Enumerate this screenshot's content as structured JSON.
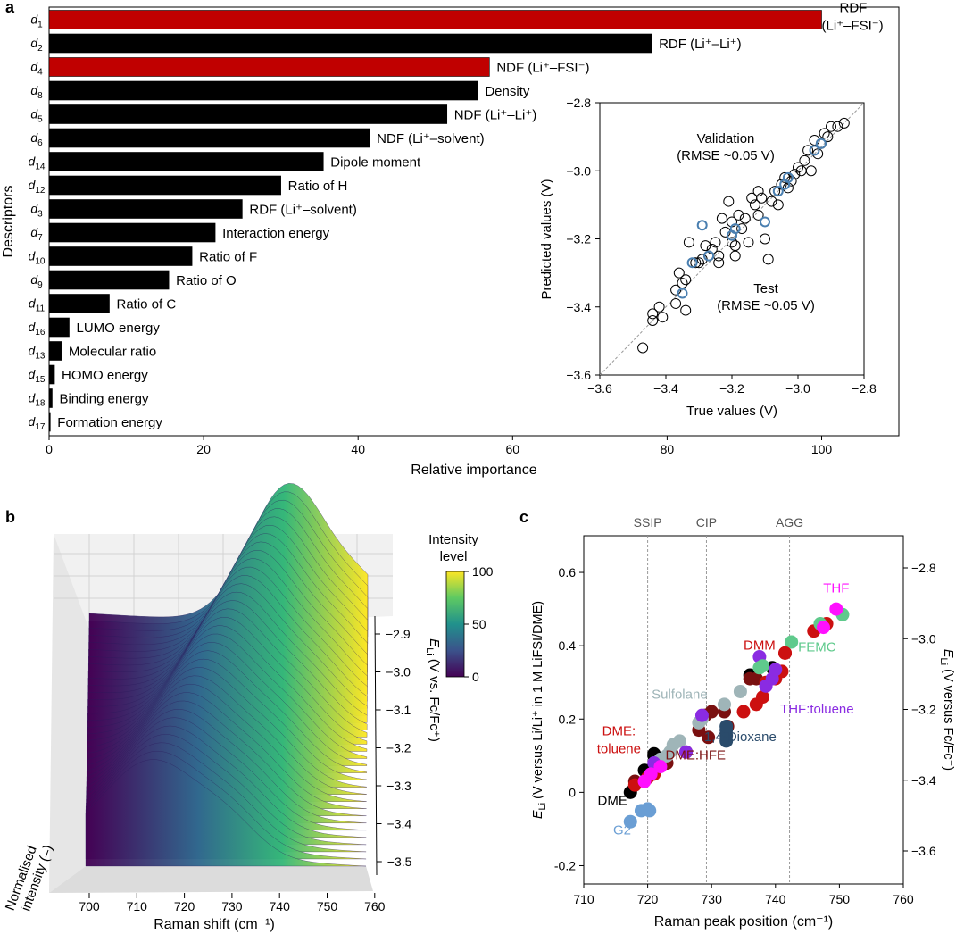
{
  "panels": {
    "a": "a",
    "b": "b",
    "c": "c"
  },
  "chart_data": [
    {
      "panel": "a",
      "type": "bar",
      "orientation": "horizontal",
      "ylabel": "Descriptors",
      "xlabel": "Relative importance",
      "xlim": [
        0,
        110
      ],
      "xticks": [
        0,
        20,
        40,
        60,
        80,
        100
      ],
      "highlight_color": "#c00000",
      "bar_color": "#000000",
      "bars": [
        {
          "id": "1",
          "name": "RDF",
          "name2": "(Li⁺–FSI⁻)",
          "value": 100,
          "highlight": true
        },
        {
          "id": "2",
          "name": "RDF (Li⁺–Li⁺)",
          "value": 78,
          "highlight": false
        },
        {
          "id": "4",
          "name": "NDF (Li⁺–FSI⁻)",
          "value": 57,
          "highlight": true
        },
        {
          "id": "8",
          "name": "Density",
          "value": 55.5,
          "highlight": false
        },
        {
          "id": "5",
          "name": "NDF (Li⁺–Li⁺)",
          "value": 51.5,
          "highlight": false
        },
        {
          "id": "6",
          "name": "NDF (Li⁺–solvent)",
          "value": 41.5,
          "highlight": false
        },
        {
          "id": "14",
          "name": "Dipole moment",
          "value": 35.5,
          "highlight": false
        },
        {
          "id": "12",
          "name": "Ratio of H",
          "value": 30,
          "highlight": false
        },
        {
          "id": "3",
          "name": "RDF (Li⁺–solvent)",
          "value": 25,
          "highlight": false
        },
        {
          "id": "7",
          "name": "Interaction energy",
          "value": 21.5,
          "highlight": false
        },
        {
          "id": "10",
          "name": "Ratio of F",
          "value": 18.5,
          "highlight": false
        },
        {
          "id": "9",
          "name": "Ratio of O",
          "value": 15.5,
          "highlight": false
        },
        {
          "id": "11",
          "name": "Ratio of C",
          "value": 7.8,
          "highlight": false
        },
        {
          "id": "16",
          "name": "LUMO energy",
          "value": 2.6,
          "highlight": false
        },
        {
          "id": "13",
          "name": "Molecular ratio",
          "value": 1.6,
          "highlight": false
        },
        {
          "id": "15",
          "name": "HOMO energy",
          "value": 0.7,
          "highlight": false
        },
        {
          "id": "18",
          "name": "Binding energy",
          "value": 0.4,
          "highlight": false
        },
        {
          "id": "17",
          "name": "Formation energy",
          "value": 0.15,
          "highlight": false
        }
      ],
      "inset": {
        "type": "scatter",
        "xlabel": "True values (V)",
        "ylabel": "Predicted values (V)",
        "xlim": [
          -3.6,
          -2.8
        ],
        "ylim": [
          -3.6,
          -2.8
        ],
        "xticks": [
          -3.6,
          -3.4,
          -3.2,
          -3.0,
          -2.8
        ],
        "yticks": [
          -3.6,
          -3.4,
          -3.2,
          -3.0,
          -2.8
        ],
        "xtick_labels": [
          "−3.6",
          "−3.4",
          "−3.2",
          "−3.0",
          "−2.8"
        ],
        "ytick_labels": [
          "−3.6",
          "−3.4",
          "−3.2",
          "−3.0",
          "−2.8"
        ],
        "validation_text": [
          "Validation",
          "(RMSE ~0.05 V)"
        ],
        "test_text": [
          "Test",
          "(RMSE ~0.05 V)"
        ],
        "validation_color": "#000000",
        "test_color": "#4a7fb0",
        "validation_points": [
          [
            -3.47,
            -3.52
          ],
          [
            -3.44,
            -3.44
          ],
          [
            -3.44,
            -3.42
          ],
          [
            -3.41,
            -3.43
          ],
          [
            -3.42,
            -3.4
          ],
          [
            -3.37,
            -3.39
          ],
          [
            -3.37,
            -3.35
          ],
          [
            -3.36,
            -3.3
          ],
          [
            -3.35,
            -3.33
          ],
          [
            -3.34,
            -3.32
          ],
          [
            -3.34,
            -3.41
          ],
          [
            -3.33,
            -3.21
          ],
          [
            -3.31,
            -3.27
          ],
          [
            -3.3,
            -3.27
          ],
          [
            -3.29,
            -3.26
          ],
          [
            -3.28,
            -3.22
          ],
          [
            -3.27,
            -3.25
          ],
          [
            -3.26,
            -3.23
          ],
          [
            -3.25,
            -3.21
          ],
          [
            -3.24,
            -3.27
          ],
          [
            -3.24,
            -3.25
          ],
          [
            -3.23,
            -3.14
          ],
          [
            -3.22,
            -3.18
          ],
          [
            -3.21,
            -3.09
          ],
          [
            -3.2,
            -3.15
          ],
          [
            -3.19,
            -3.22
          ],
          [
            -3.18,
            -3.13
          ],
          [
            -3.17,
            -3.17
          ],
          [
            -3.16,
            -3.14
          ],
          [
            -3.15,
            -3.21
          ],
          [
            -3.14,
            -3.08
          ],
          [
            -3.13,
            -3.1
          ],
          [
            -3.12,
            -3.06
          ],
          [
            -3.12,
            -3.13
          ],
          [
            -3.11,
            -3.08
          ],
          [
            -3.1,
            -3.2
          ],
          [
            -3.09,
            -3.26
          ],
          [
            -3.08,
            -3.09
          ],
          [
            -3.07,
            -3.06
          ],
          [
            -3.06,
            -3.1
          ],
          [
            -3.05,
            -3.04
          ],
          [
            -3.04,
            -3.02
          ],
          [
            -3.03,
            -3.05
          ],
          [
            -3.02,
            -3.03
          ],
          [
            -3.01,
            -3.01
          ],
          [
            -3.0,
            -2.99
          ],
          [
            -2.99,
            -3.0
          ],
          [
            -2.98,
            -2.97
          ],
          [
            -2.97,
            -2.94
          ],
          [
            -2.96,
            -3.0
          ],
          [
            -2.95,
            -2.91
          ],
          [
            -2.94,
            -2.95
          ],
          [
            -2.93,
            -2.92
          ],
          [
            -2.92,
            -2.89
          ],
          [
            -2.91,
            -2.9
          ],
          [
            -2.9,
            -2.87
          ],
          [
            -2.88,
            -2.87
          ],
          [
            -2.86,
            -2.86
          ],
          [
            -3.19,
            -3.25
          ],
          [
            -3.2,
            -3.21
          ]
        ],
        "test_points": [
          [
            -3.35,
            -3.36
          ],
          [
            -3.32,
            -3.27
          ],
          [
            -3.29,
            -3.16
          ],
          [
            -3.27,
            -3.25
          ],
          [
            -3.2,
            -3.19
          ],
          [
            -3.19,
            -3.17
          ],
          [
            -3.1,
            -3.15
          ],
          [
            -3.06,
            -3.06
          ],
          [
            -3.04,
            -3.04
          ],
          [
            -3.03,
            -3.02
          ],
          [
            -2.95,
            -2.94
          ],
          [
            -2.93,
            -2.92
          ]
        ]
      }
    },
    {
      "panel": "b",
      "type": "surface3d",
      "xlabel": "Raman shift (cm⁻¹)",
      "xticks": [
        700,
        710,
        720,
        730,
        740,
        750,
        760
      ],
      "zlabel": [
        "Normalised",
        "intensity (–)"
      ],
      "ylabel_main": "E",
      "ylabel_sub": "Li",
      "ylabel_rest": " (V vs. Fc/Fc⁺)",
      "yticks": [
        -2.9,
        -3.0,
        -3.1,
        -3.2,
        -3.3,
        -3.4,
        -3.5
      ],
      "ytick_labels": [
        "−2.9",
        "−3.0",
        "−3.1",
        "−3.2",
        "−3.3",
        "−3.4",
        "−3.5"
      ],
      "colorbar": {
        "title": [
          "Intensity",
          "level"
        ],
        "ticks": [
          0,
          50,
          100
        ],
        "colors": [
          "#440154",
          "#3b528b",
          "#21918c",
          "#5ec962",
          "#fde725"
        ]
      }
    },
    {
      "panel": "c",
      "type": "scatter",
      "xlabel": "Raman peak position (cm⁻¹)",
      "ylabel_main": "E",
      "ylabel_sub": "Li",
      "ylabel_rest": " (V versus Li/Li⁺ in 1 M LiFSI/DME)",
      "y2label_main": "E",
      "y2label_sub": "Li",
      "y2label_rest": " (V versus Fc/Fc⁺)",
      "xlim": [
        710,
        760
      ],
      "ylim": [
        -0.25,
        0.7
      ],
      "xticks": [
        710,
        720,
        730,
        740,
        750,
        760
      ],
      "yticks": [
        -0.2,
        0,
        0.2,
        0.4,
        0.6
      ],
      "ytick_labels": [
        "-0.2",
        "0",
        "0.2",
        "0.4",
        "0.6"
      ],
      "y2ticks": [
        -3.6,
        -3.4,
        -3.2,
        -3.0,
        -2.8
      ],
      "y2tick_labels": [
        "−3.6",
        "−3.4",
        "−3.2",
        "−3.0",
        "−2.8"
      ],
      "vlines": [
        {
          "x": 720,
          "label": "SSIP"
        },
        {
          "x": 729.2,
          "label": "CIP"
        },
        {
          "x": 742.2,
          "label": "AGG"
        }
      ],
      "series": [
        {
          "name": "G2",
          "color": "#6a9ed4",
          "points": [
            [
              717.3,
              -0.08
            ],
            [
              719,
              -0.05
            ],
            [
              720,
              -0.045
            ],
            [
              720.3,
              -0.05
            ]
          ],
          "label_at": [
            716,
            -0.115
          ]
        },
        {
          "name": "DME",
          "color": "#000000",
          "points": [
            [
              717.3,
              0
            ],
            [
              719.5,
              0.06
            ],
            [
              721,
              0.1
            ],
            [
              736,
              0.32
            ],
            [
              739.5,
              0.34
            ],
            [
              721,
              0.105
            ]
          ],
          "label_at": [
            714.5,
            -0.035
          ]
        },
        {
          "name": "DME:HFE",
          "color": "#7a1010",
          "points": [
            [
              718,
              0.03
            ],
            [
              723,
              0.08
            ],
            [
              726,
              0.11
            ],
            [
              728,
              0.17
            ],
            [
              729,
              0.21
            ],
            [
              730,
              0.22
            ],
            [
              732,
              0.22
            ],
            [
              729.5,
              0.15
            ],
            [
              732.5,
              0.18
            ],
            [
              736,
              0.31
            ],
            [
              737,
              0.31
            ]
          ],
          "label_at": [
            727.5,
            0.09
          ]
        },
        {
          "name": "DME:",
          "name2": "toluene",
          "color": "#cc1010",
          "points": [
            [
              718,
              0.02
            ],
            [
              720,
              0.04
            ],
            [
              721,
              0.05
            ],
            [
              735,
              0.22
            ],
            [
              737,
              0.24
            ],
            [
              738,
              0.26
            ],
            [
              738.5,
              0.3
            ],
            [
              740,
              0.31
            ],
            [
              741,
              0.33
            ],
            [
              741.5,
              0.38
            ],
            [
              746,
              0.44
            ],
            [
              748,
              0.46
            ]
          ],
          "label_at": [
            715.5,
            0.155
          ]
        },
        {
          "name": "Sulfolane",
          "color": "#9fb5b8",
          "points": [
            [
              722,
              0.09
            ],
            [
              723,
              0.1
            ],
            [
              723.5,
              0.11
            ],
            [
              724,
              0.13
            ],
            [
              725,
              0.14
            ],
            [
              728,
              0.19
            ],
            [
              728.5,
              0.2
            ],
            [
              732,
              0.24
            ],
            [
              734.5,
              0.275
            ]
          ],
          "label_at": [
            725,
            0.255
          ]
        },
        {
          "name": "1,4-Dioxane",
          "color": "#2a4b6b",
          "points": [
            [
              732.3,
              0.14
            ],
            [
              732.3,
              0.155
            ],
            [
              732.3,
              0.17
            ],
            [
              732.3,
              0.18
            ]
          ],
          "label_at": [
            734.5,
            0.14
          ]
        },
        {
          "name": "THF:toluene",
          "color": "#8a2be2",
          "points": [
            [
              721,
              0.08
            ],
            [
              726,
              0.11
            ],
            [
              728.5,
              0.21
            ],
            [
              738.5,
              0.29
            ],
            [
              739.5,
              0.31
            ],
            [
              740,
              0.335
            ],
            [
              737.5,
              0.37
            ]
          ],
          "label_at": [
            746.5,
            0.215
          ]
        },
        {
          "name": "FEMC",
          "color": "#5fca8c",
          "points": [
            [
              737.5,
              0.34
            ],
            [
              738,
              0.345
            ],
            [
              742.5,
              0.41
            ],
            [
              747,
              0.46
            ],
            [
              750.5,
              0.485
            ]
          ],
          "label_at": [
            746.5,
            0.385
          ]
        },
        {
          "name": "DMM",
          "color": "#cc1010",
          "points": [
            [
              741.5,
              0.38
            ]
          ],
          "label_at": [
            737.5,
            0.39
          ]
        },
        {
          "name": "THF",
          "color": "#ff10ff",
          "points": [
            [
              719.5,
              0.03
            ],
            [
              720.5,
              0.05
            ],
            [
              722,
              0.07
            ],
            [
              749.5,
              0.5
            ],
            [
              747.5,
              0.45
            ]
          ],
          "label_at": [
            749.5,
            0.545
          ]
        }
      ]
    }
  ]
}
